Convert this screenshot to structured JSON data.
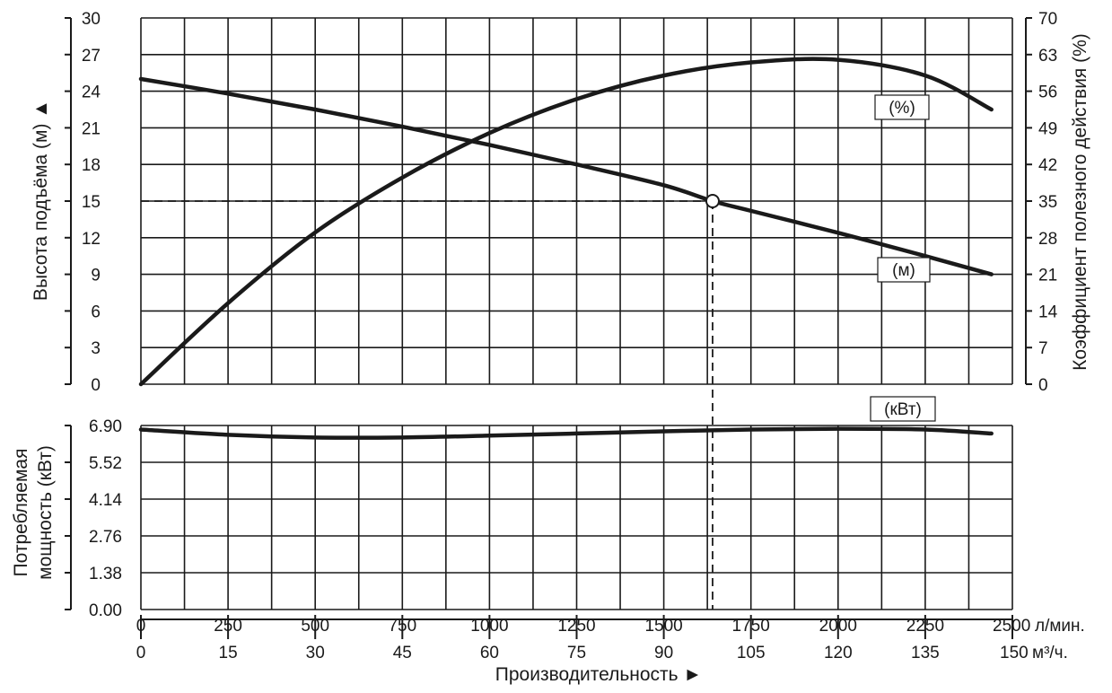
{
  "chart_data": {
    "type": "line",
    "xlabel": "Производительность ►",
    "x_primary": {
      "ticks": [
        "0",
        "250",
        "500",
        "750",
        "1000",
        "1250",
        "1500",
        "1750",
        "2000",
        "2250",
        "2500"
      ],
      "unit": "л/мин.",
      "range": [
        0,
        2500
      ]
    },
    "x_secondary": {
      "ticks": [
        "0",
        "15",
        "30",
        "45",
        "60",
        "75",
        "90",
        "105",
        "120",
        "135",
        "150"
      ],
      "unit": "м³/ч.",
      "range": [
        0,
        150
      ]
    },
    "top_panel": {
      "left_axis": {
        "label": "Высота подъёма (м) ▲",
        "ticks": [
          "0",
          "3",
          "6",
          "9",
          "12",
          "15",
          "18",
          "21",
          "24",
          "27",
          "30"
        ],
        "range": [
          0,
          30
        ]
      },
      "right_axis": {
        "label": "Коэффициент полезного действия (%)",
        "ticks": [
          "0",
          "7",
          "14",
          "21",
          "28",
          "35",
          "42",
          "49",
          "56",
          "63",
          "70"
        ],
        "range": [
          0,
          70
        ]
      },
      "grid": true,
      "series": [
        {
          "name": "(м)",
          "axis": "left",
          "x": [
            0,
            250,
            500,
            750,
            1000,
            1250,
            1500,
            1640,
            1750,
            2000,
            2250,
            2440
          ],
          "values": [
            25.0,
            23.8,
            22.5,
            21.1,
            19.6,
            18.0,
            16.3,
            15.0,
            14.2,
            12.4,
            10.5,
            9.0
          ]
        },
        {
          "name": "(%)",
          "axis": "right",
          "x": [
            0,
            250,
            500,
            750,
            1000,
            1250,
            1500,
            1750,
            2000,
            2250,
            2440
          ],
          "values": [
            0,
            15.5,
            29,
            39.5,
            48,
            54.5,
            59,
            61.5,
            62,
            59,
            52.5
          ]
        }
      ],
      "operating_point": {
        "x": 1640,
        "y": 15
      }
    },
    "bottom_panel": {
      "left_axis": {
        "label_lines": [
          "Потребляемая",
          "мощность (кВт)"
        ],
        "ticks": [
          "0.00",
          "1.38",
          "2.76",
          "4.14",
          "5.52",
          "6.90"
        ],
        "range": [
          0,
          6.9
        ]
      },
      "grid": true,
      "series": [
        {
          "name": "(кВт)",
          "x": [
            0,
            250,
            500,
            750,
            1000,
            1250,
            1500,
            1750,
            2000,
            2250,
            2440
          ],
          "values": [
            6.75,
            6.55,
            6.45,
            6.45,
            6.52,
            6.6,
            6.68,
            6.75,
            6.78,
            6.75,
            6.6
          ]
        }
      ]
    }
  }
}
